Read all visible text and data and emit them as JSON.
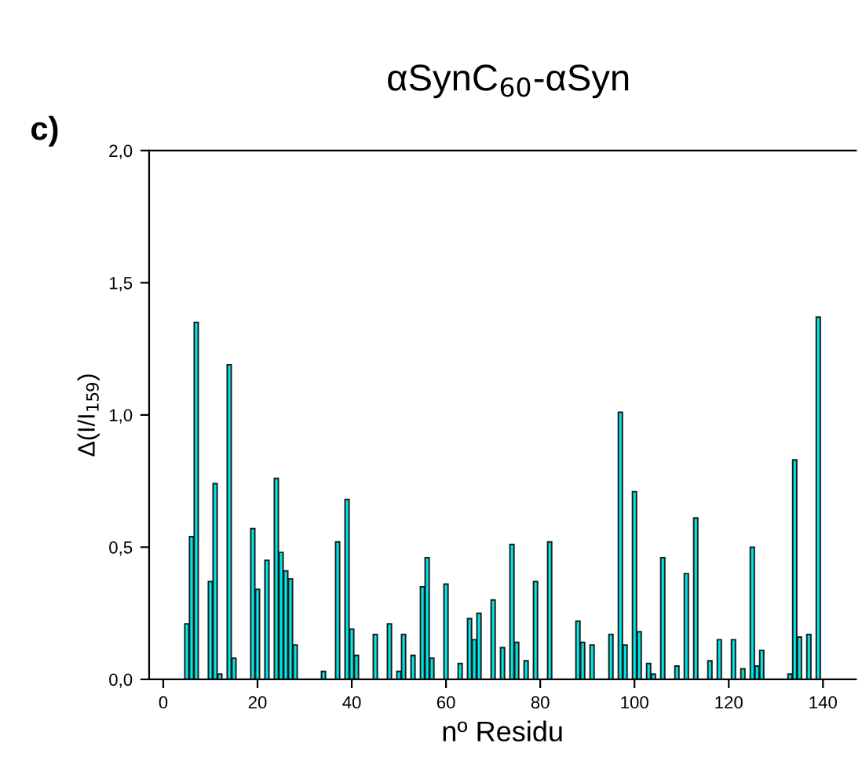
{
  "chart_data": {
    "type": "bar",
    "title": "αSynC$_{60}$-αSyn",
    "xlabel": "nº Residu",
    "ylabel": "Δ(I/I$_{159}$)",
    "annotations": [
      "c)"
    ],
    "x": [
      5,
      6,
      7,
      10,
      11,
      12,
      14,
      15,
      19,
      20,
      22,
      24,
      25,
      26,
      27,
      28,
      34,
      37,
      39,
      40,
      41,
      45,
      48,
      50,
      51,
      53,
      55,
      56,
      57,
      60,
      63,
      65,
      66,
      67,
      70,
      72,
      74,
      75,
      77,
      79,
      82,
      88,
      89,
      91,
      95,
      97,
      98,
      100,
      101,
      103,
      104,
      106,
      109,
      111,
      113,
      116,
      118,
      121,
      123,
      125,
      126,
      127,
      133,
      134,
      135,
      137,
      139
    ],
    "values": [
      0.21,
      0.54,
      1.35,
      0.37,
      0.74,
      0.02,
      1.19,
      0.08,
      0.57,
      0.34,
      0.45,
      0.76,
      0.48,
      0.41,
      0.38,
      0.13,
      0.03,
      0.52,
      0.68,
      0.19,
      0.09,
      0.17,
      0.21,
      0.03,
      0.17,
      0.09,
      0.35,
      0.46,
      0.08,
      0.36,
      0.06,
      0.23,
      0.15,
      0.25,
      0.3,
      0.12,
      0.51,
      0.14,
      0.07,
      0.37,
      0.52,
      0.22,
      0.14,
      0.13,
      0.17,
      1.01,
      0.13,
      0.71,
      0.18,
      0.06,
      0.02,
      0.46,
      0.05,
      0.4,
      0.61,
      0.07,
      0.15,
      0.15,
      0.04,
      0.5,
      0.05,
      0.11,
      0.02,
      0.83,
      0.16,
      0.17,
      1.37
    ],
    "color": "#00e8e8",
    "xlim": [
      -3,
      147
    ],
    "xticks": [
      0,
      20,
      40,
      60,
      80,
      100,
      120,
      140
    ],
    "ylim": [
      0,
      2
    ],
    "yticks": [
      {
        "value": 0,
        "label": "0,0"
      },
      {
        "value": 0.5,
        "label": "0,5"
      },
      {
        "value": 1,
        "label": "1,0"
      },
      {
        "value": 1.5,
        "label": "1,5"
      },
      {
        "value": 2,
        "label": "2,0"
      }
    ],
    "grid": false
  }
}
